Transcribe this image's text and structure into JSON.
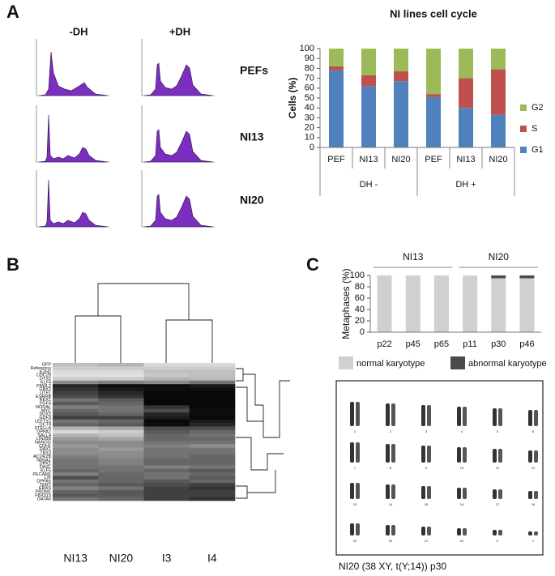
{
  "panel_labels": [
    "A",
    "B",
    "C"
  ],
  "flow": {
    "columns": [
      "-DH",
      "+DH"
    ],
    "rows": [
      "PEFs",
      "NI13",
      "NI20"
    ]
  },
  "chart_data": [
    {
      "type": "bar",
      "stacked": true,
      "title": "NI lines cell cycle",
      "ylabel": "Cells (%)",
      "groups": [
        {
          "name": "DH -",
          "categories": [
            "PEF",
            "NI13",
            "NI20"
          ]
        },
        {
          "name": "DH +",
          "categories": [
            "PEF",
            "NI13",
            "NI20"
          ]
        }
      ],
      "group_label_position": "bottom",
      "legend": "right",
      "grid": false,
      "series": [
        {
          "name": "G1",
          "color": "#4f81bd",
          "values": [
            78,
            62,
            67,
            51,
            40,
            33
          ]
        },
        {
          "name": "S",
          "color": "#c0504d",
          "values": [
            4,
            11,
            10,
            3,
            30,
            46
          ]
        },
        {
          "name": "G2",
          "color": "#9bbb59",
          "values": [
            18,
            27,
            23,
            46,
            30,
            21
          ]
        }
      ],
      "ylim": [
        0,
        100
      ],
      "yticks": [
        0,
        10,
        20,
        30,
        40,
        50,
        60,
        70,
        80,
        90,
        100
      ]
    },
    {
      "type": "heatmap",
      "zlim": [
        0,
        100
      ],
      "colors": [
        "#000000",
        "#ffffff"
      ],
      "columns": [
        "NI13",
        "NI20",
        "I3",
        "I4"
      ],
      "rows": [
        "GFP",
        "Reference",
        "EZH2",
        "CDC20",
        "OTX2",
        "KLF4",
        "PIWIL2",
        "GBX2",
        "UTF1",
        "ESRRB",
        "REX1",
        "FGF4",
        "NODAL",
        "MYC",
        "SOX2",
        "GDF3",
        "LEFTY2",
        "OCT4",
        "STELLA",
        "DPPA2",
        "SALL4",
        "LIN28B",
        "NANOG",
        "CDH1",
        "DAX1",
        "TBX3",
        "ACVR2B",
        "NR6A1",
        "DKK1",
        "DAZL",
        "KLF5",
        "PECAM1",
        "LIF",
        "DPPA5",
        "TERT",
        "ERAS",
        "PRDM1",
        "FBX015",
        "GATA6"
      ],
      "values": [
        [
          75,
          70,
          85,
          85
        ],
        [
          80,
          80,
          80,
          80
        ],
        [
          85,
          85,
          75,
          75
        ],
        [
          88,
          88,
          78,
          75
        ],
        [
          80,
          80,
          70,
          72
        ],
        [
          55,
          50,
          55,
          45
        ],
        [
          15,
          5,
          5,
          10
        ],
        [
          20,
          10,
          5,
          5
        ],
        [
          25,
          15,
          3,
          3
        ],
        [
          30,
          20,
          3,
          3
        ],
        [
          45,
          35,
          3,
          3
        ],
        [
          35,
          40,
          3,
          3
        ],
        [
          50,
          45,
          20,
          3
        ],
        [
          40,
          45,
          30,
          5
        ],
        [
          35,
          40,
          15,
          5
        ],
        [
          25,
          25,
          10,
          3
        ],
        [
          45,
          40,
          3,
          10
        ],
        [
          40,
          35,
          5,
          15
        ],
        [
          70,
          65,
          30,
          30
        ],
        [
          85,
          80,
          35,
          40
        ],
        [
          70,
          75,
          40,
          45
        ],
        [
          60,
          65,
          40,
          40
        ],
        [
          55,
          55,
          45,
          45
        ],
        [
          60,
          55,
          50,
          55
        ],
        [
          55,
          60,
          45,
          45
        ],
        [
          55,
          55,
          45,
          45
        ],
        [
          50,
          55,
          45,
          40
        ],
        [
          45,
          50,
          40,
          40
        ],
        [
          45,
          50,
          40,
          40
        ],
        [
          45,
          45,
          50,
          45
        ],
        [
          40,
          45,
          40,
          35
        ],
        [
          50,
          40,
          45,
          40
        ],
        [
          30,
          40,
          45,
          35
        ],
        [
          45,
          40,
          35,
          40
        ],
        [
          40,
          35,
          30,
          25
        ],
        [
          50,
          45,
          25,
          20
        ],
        [
          40,
          35,
          25,
          25
        ],
        [
          35,
          35,
          25,
          25
        ],
        [
          45,
          40,
          25,
          20
        ]
      ]
    },
    {
      "type": "bar",
      "stacked": true,
      "ylabel": "Metaphases (%)",
      "groups": [
        {
          "name": "NI13",
          "categories": [
            "p22",
            "p45",
            "p65"
          ]
        },
        {
          "name": "NI20",
          "categories": [
            "p11",
            "p30",
            "p46"
          ]
        }
      ],
      "group_label_position": "top",
      "legend": "bottom",
      "grid": false,
      "series": [
        {
          "name": "normal karyotype",
          "color": "#d0d0d0",
          "values": [
            100,
            100,
            100,
            100,
            95,
            95
          ]
        },
        {
          "name": "abnormal karyotype",
          "color": "#4a4a4a",
          "values": [
            0,
            0,
            0,
            0,
            5,
            5
          ]
        }
      ],
      "ylim": [
        0,
        100
      ],
      "yticks": [
        0,
        20,
        40,
        60,
        80,
        100
      ]
    }
  ],
  "karyotype": {
    "labels": [
      "1",
      "2",
      "3",
      "4",
      "5",
      "6",
      "7",
      "8",
      "9",
      "10",
      "11",
      "12",
      "13",
      "14",
      "15",
      "16",
      "17",
      "18",
      "19",
      "20",
      "21",
      "22",
      "X",
      "Y"
    ],
    "caption": "NI20 (38 XY, t(Y;14)) p30"
  }
}
